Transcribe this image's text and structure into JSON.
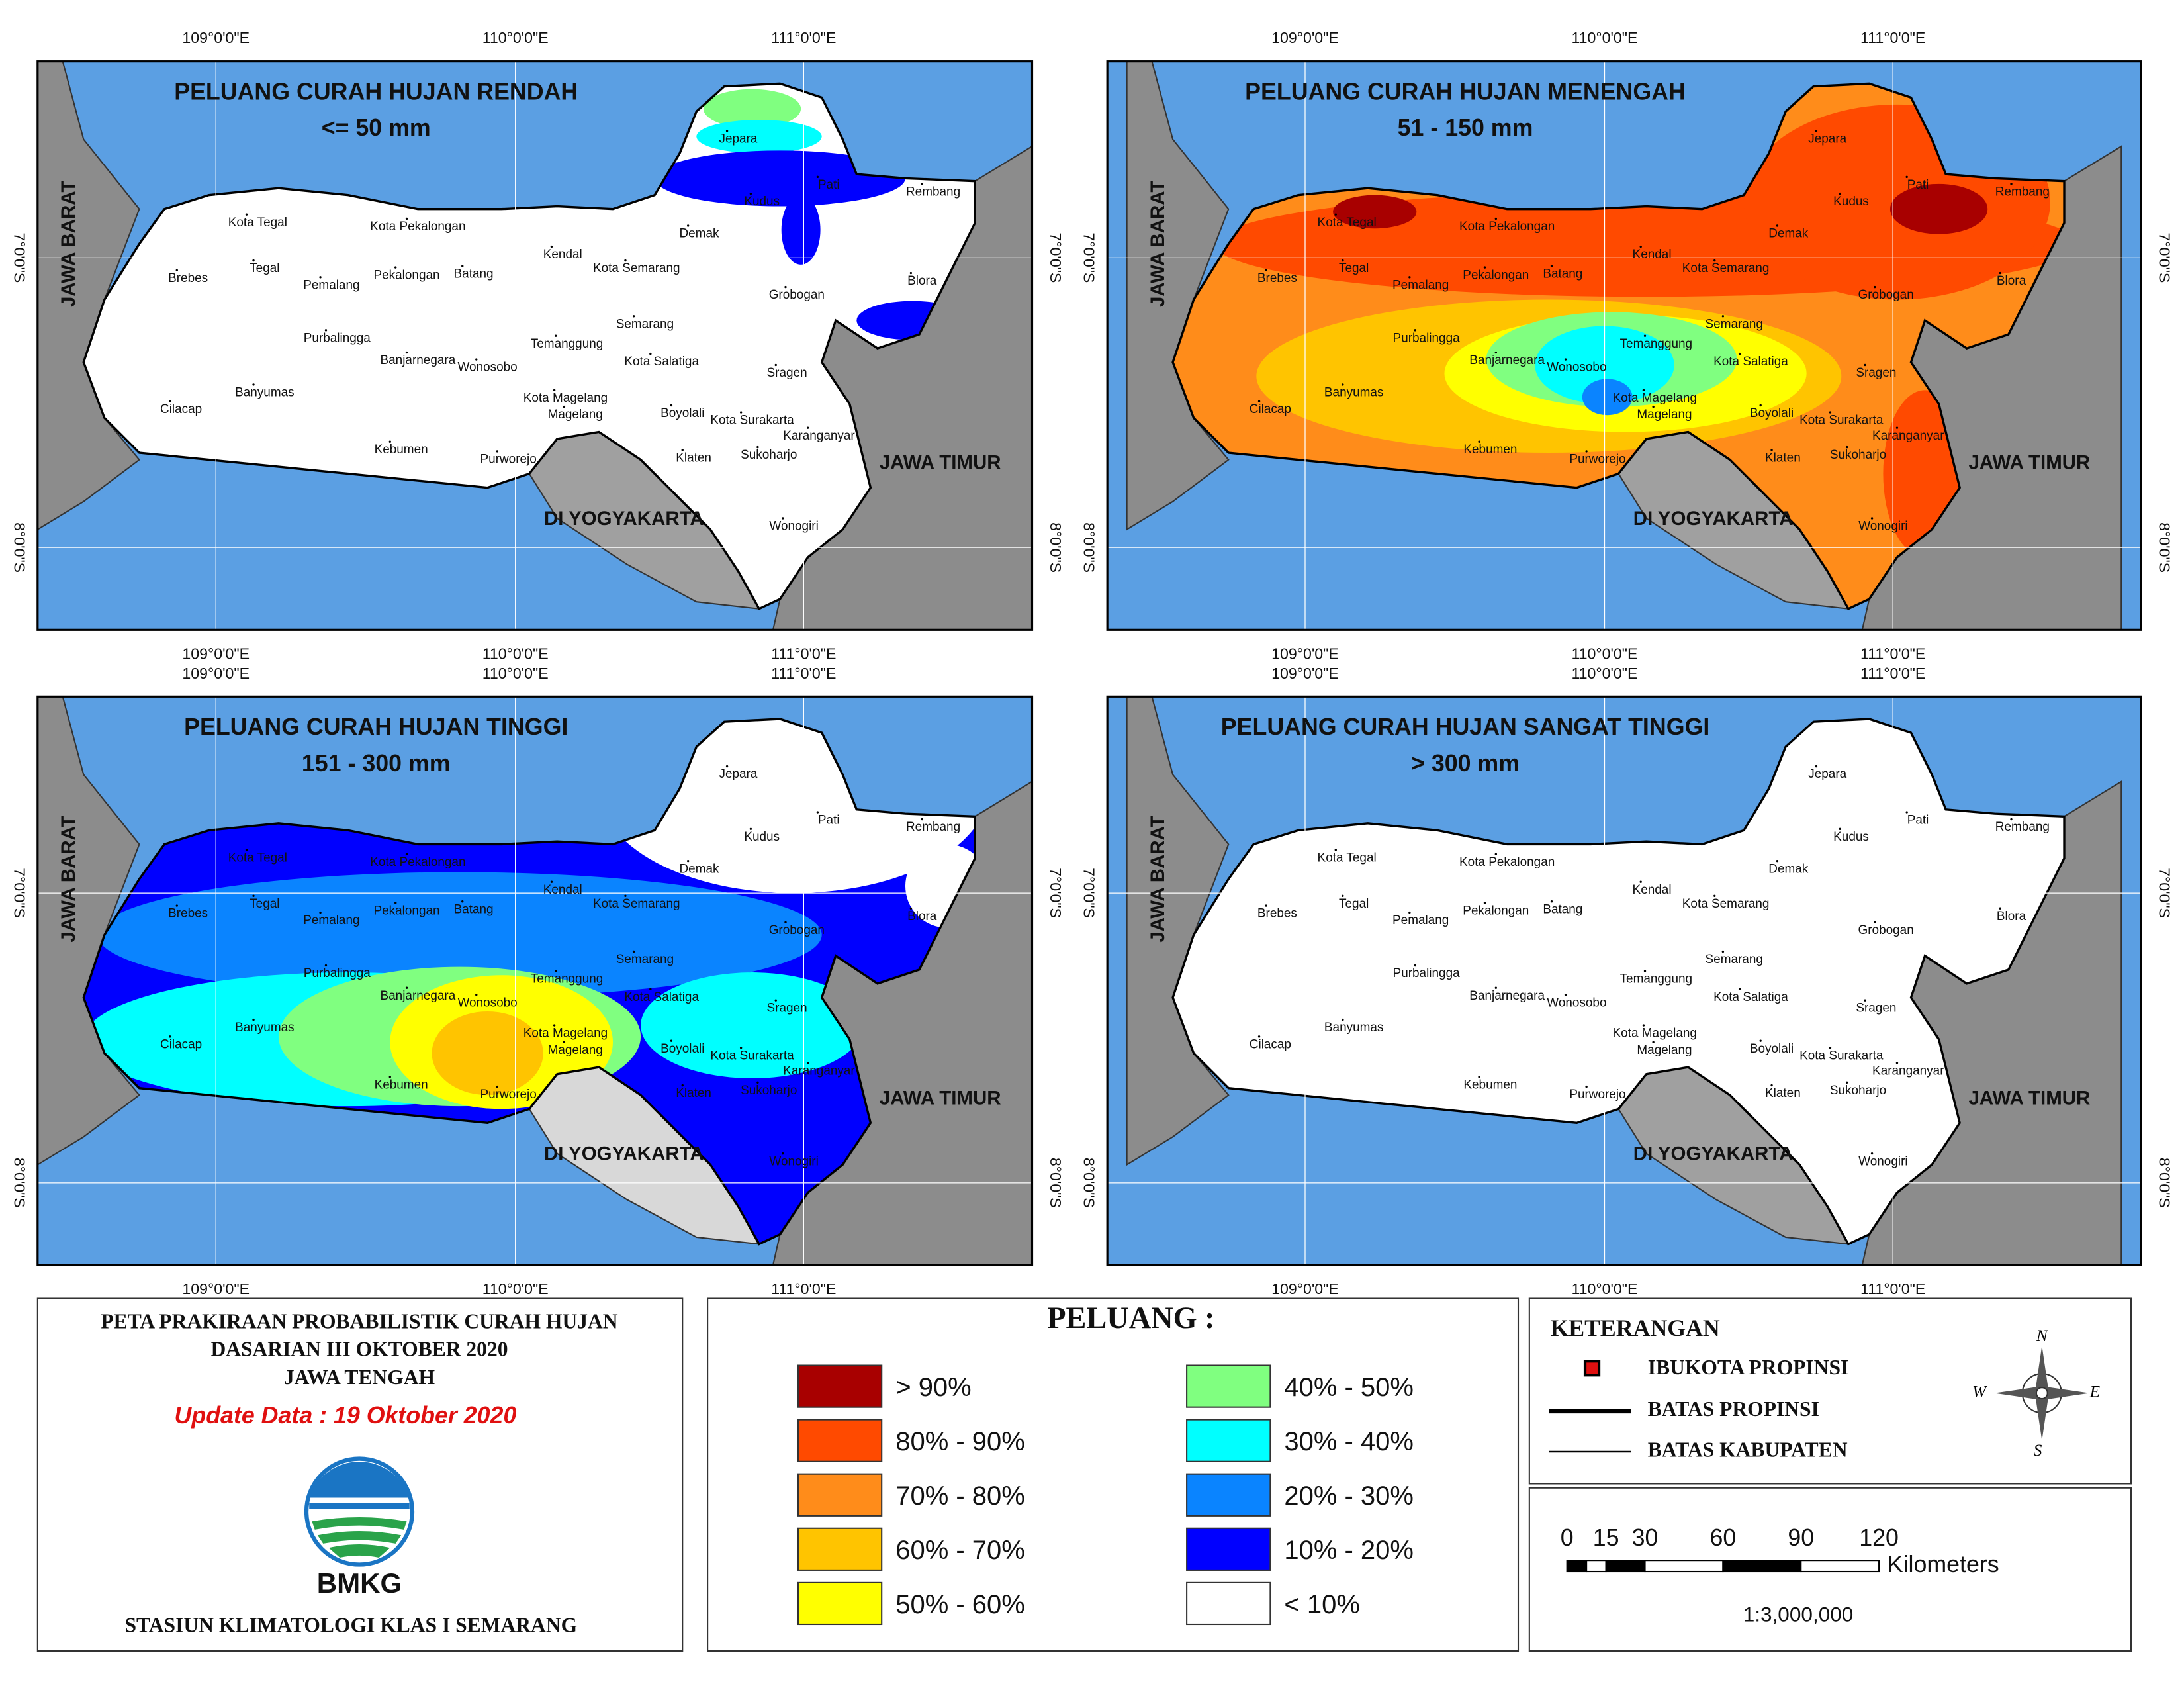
{
  "graticule": {
    "lon": [
      "109°0'0\"E",
      "110°0'0\"E",
      "111°0'0\"E"
    ],
    "lat": [
      "7°0'0\"S",
      "8°0'0\"S"
    ]
  },
  "provinces": [
    "JAWA BARAT",
    "JAWA TIMUR",
    "DI YOGYAKARTA"
  ],
  "districts": [
    "Jepara",
    "Kudus",
    "Pati",
    "Rembang",
    "Kota Tegal",
    "Kota Pekalongan",
    "Demak",
    "Tegal",
    "Brebes",
    "Kendal",
    "Kota Semarang",
    "Batang",
    "Pekalongan",
    "Pemalang",
    "Blora",
    "Grobogan",
    "Semarang",
    "Purbalingga",
    "Temanggung",
    "Banjarnegara",
    "Kota Salatiga",
    "Wonosobo",
    "Sragen",
    "Banyumas",
    "Kota Magelang",
    "Cilacap",
    "Boyolali",
    "Magelang",
    "Kota Surakarta",
    "Karanganyar",
    "Kebumen",
    "Klaten",
    "Sukoharjo",
    "Purworejo",
    "Wonogiri"
  ],
  "panels": [
    {
      "title": "PELUANG CURAH HUJAN RENDAH",
      "subtitle": "<= 50 mm"
    },
    {
      "title": "PELUANG CURAH HUJAN MENENGAH",
      "subtitle": "51 - 150 mm"
    },
    {
      "title": "PELUANG CURAH HUJAN TINGGI",
      "subtitle": "151 - 300 mm"
    },
    {
      "title": "PELUANG CURAH HUJAN SANGAT TINGGI",
      "subtitle": "> 300 mm"
    }
  ],
  "info": {
    "lines": [
      "PETA PRAKIRAAN PROBABILISTIK CURAH HUJAN",
      "DASARIAN III OKTOBER 2020",
      "JAWA TENGAH"
    ],
    "update": "Update Data : 19 Oktober 2020",
    "logo": "BMKG",
    "station": "STASIUN KLIMATOLOGI KLAS I SEMARANG"
  },
  "legend": {
    "title": "PELUANG :",
    "classes": [
      {
        "label": "> 90%",
        "color": "#a80000"
      },
      {
        "label": "80% - 90%",
        "color": "#ff4a00"
      },
      {
        "label": "70% - 80%",
        "color": "#ff8c1a"
      },
      {
        "label": "60% - 70%",
        "color": "#ffc400"
      },
      {
        "label": "50% - 60%",
        "color": "#ffff00"
      },
      {
        "label": "40% - 50%",
        "color": "#80ff80"
      },
      {
        "label": "30% - 40%",
        "color": "#00ffff"
      },
      {
        "label": "20% - 30%",
        "color": "#0a84ff"
      },
      {
        "label": "10% - 20%",
        "color": "#0000ff"
      },
      {
        "label": "< 10%",
        "color": "#ffffff"
      }
    ]
  },
  "keterangan": {
    "title": "KETERANGAN",
    "items": [
      "IBUKOTA PROPINSI",
      "BATAS PROPINSI",
      "BATAS KABUPATEN"
    ]
  },
  "compass": [
    "N",
    "W",
    "E",
    "S"
  ],
  "scale": {
    "ticks": [
      "0",
      "15",
      "30",
      "60",
      "90",
      "120"
    ],
    "unit": "Kilometers",
    "ratio": "1:3,000,000"
  }
}
